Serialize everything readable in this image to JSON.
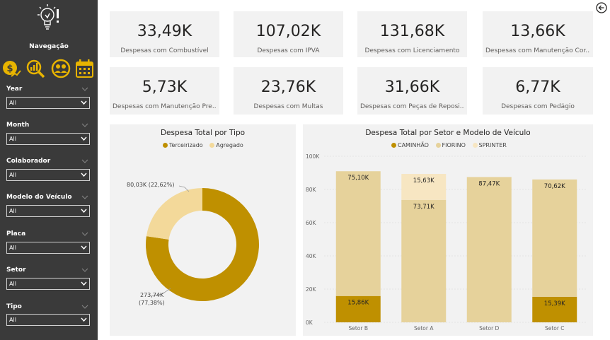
{
  "navigation": {
    "title": "Navegação",
    "icons": [
      "money-chart-icon",
      "analytics-magnifier-icon",
      "people-gear-icon",
      "calendar-icon"
    ]
  },
  "filters": [
    {
      "label": "Year",
      "value": "All"
    },
    {
      "label": "Month",
      "value": "All"
    },
    {
      "label": "Colaborador",
      "value": "All"
    },
    {
      "label": "Modelo do Veículo",
      "value": "All"
    },
    {
      "label": "Placa",
      "value": "All"
    },
    {
      "label": "Setor",
      "value": "All"
    },
    {
      "label": "Tipo",
      "value": "All"
    }
  ],
  "kpis": [
    {
      "value": "33,49K",
      "label": "Despesas com Combustível"
    },
    {
      "value": "107,02K",
      "label": "Despesas com IPVA"
    },
    {
      "value": "131,68K",
      "label": "Despesas com Licenciamento"
    },
    {
      "value": "13,66K",
      "label": "Despesas com Manutenção Cor..."
    },
    {
      "value": "5,73K",
      "label": "Despesas com Manutenção Pre..."
    },
    {
      "value": "23,76K",
      "label": "Despesas com Multas"
    },
    {
      "value": "31,66K",
      "label": "Despesas com Peças de Reposi..."
    },
    {
      "value": "6,77K",
      "label": "Despesas com Pedágio"
    }
  ],
  "colors": {
    "dark_gold": "#bf9000",
    "light_gold": "#f3d99a",
    "bar_tan": "#e6d29b",
    "pale": "#f7e6c2",
    "sidebar": "#3a3a3a",
    "card": "#f2f2f2"
  },
  "chart_data": [
    {
      "type": "pie",
      "title": "Despesa Total por Tipo",
      "legend_position": "top",
      "series": [
        {
          "name": "Terceirizado",
          "value": 273.74,
          "percent": 77.38,
          "label": "273,74K",
          "pct_label": "(77,38%)",
          "color": "#bf9000"
        },
        {
          "name": "Agregado",
          "value": 80.03,
          "percent": 22.62,
          "label": "80,03K (22,62%)",
          "color": "#f3d99a"
        }
      ]
    },
    {
      "type": "bar",
      "stacked": true,
      "title": "Despesa Total por Setor e Modelo de Veículo",
      "legend_position": "top",
      "categories": [
        "Setor B",
        "Setor A",
        "Setor D",
        "Setor C"
      ],
      "ylim": [
        0,
        100
      ],
      "yticks": [
        "0K",
        "20K",
        "40K",
        "60K",
        "80K",
        "100K"
      ],
      "series": [
        {
          "name": "CAMINHÃO",
          "color": "#bf9000",
          "values": [
            15.86,
            0,
            0,
            15.39
          ],
          "labels": [
            "15,86K",
            "",
            "",
            "15,39K"
          ]
        },
        {
          "name": "FIORINO",
          "color": "#e6d29b",
          "values": [
            75.1,
            73.71,
            87.47,
            70.62
          ],
          "labels": [
            "75,10K",
            "73,71K",
            "87,47K",
            "70,62K"
          ]
        },
        {
          "name": "SPRINTER",
          "color": "#f7e6c2",
          "values": [
            0,
            15.63,
            0,
            0
          ],
          "labels": [
            "",
            "15,63K",
            "",
            ""
          ]
        }
      ]
    }
  ]
}
